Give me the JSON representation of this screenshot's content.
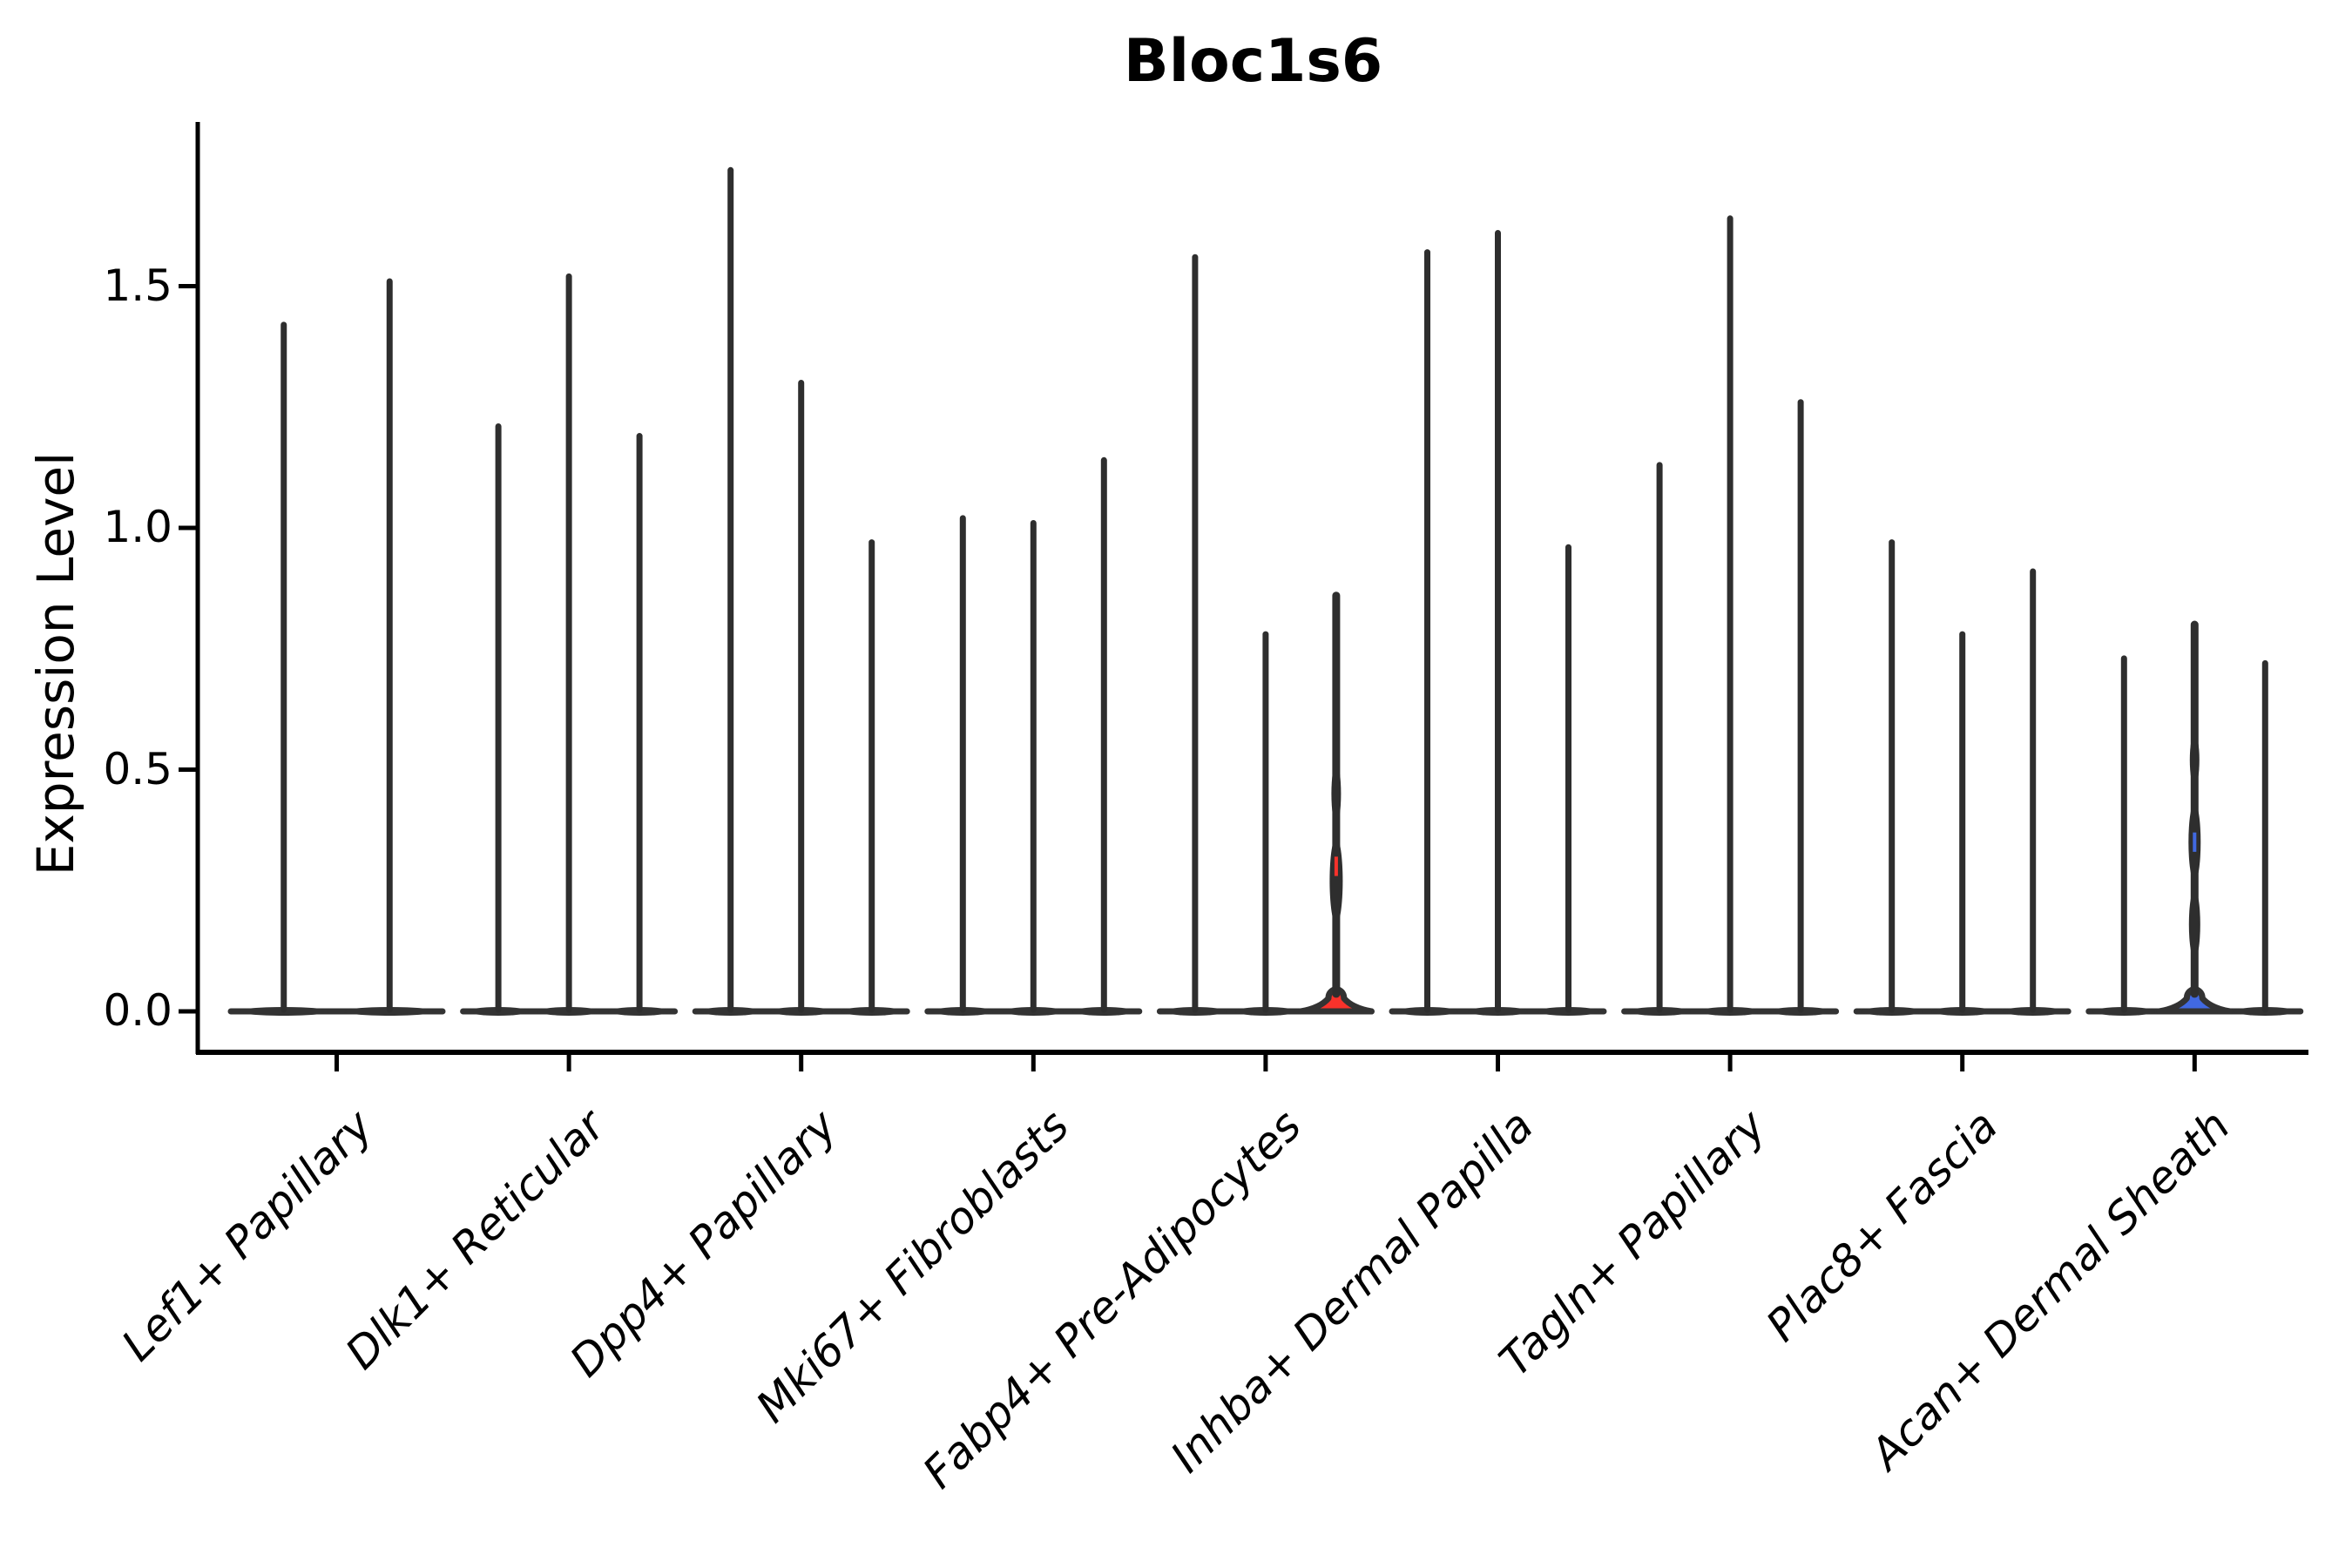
{
  "chart_data": {
    "type": "violin",
    "title": "Bloc1s6",
    "ylabel": "Expression Level",
    "xlabel": "",
    "ylim": [
      0,
      1.84
    ],
    "grid": false,
    "legend": "none",
    "y_ticks": [
      {
        "value": 0.0,
        "label": "0.0"
      },
      {
        "value": 0.5,
        "label": "0.5"
      },
      {
        "value": 1.0,
        "label": "1.0"
      },
      {
        "value": 1.5,
        "label": "1.5"
      }
    ],
    "colors": {
      "violin_line": "#2e2e2e",
      "outline": "#333333",
      "axis": "#000000",
      "background": "#ffffff",
      "highlight_red": "#f9322b",
      "highlight_blue": "#4169e1"
    },
    "groups": [
      {
        "label": "Lef1+ Papillary",
        "violins": [
          {
            "min": 0,
            "max": 1.42
          },
          {
            "min": 0,
            "max": 1.51
          }
        ]
      },
      {
        "label": "Dlk1+ Reticular",
        "violins": [
          {
            "min": 0,
            "max": 1.21
          },
          {
            "min": 0,
            "max": 1.52
          },
          {
            "min": 0,
            "max": 1.19
          }
        ]
      },
      {
        "label": "Dpp4+ Papillary",
        "violins": [
          {
            "min": 0,
            "max": 1.74
          },
          {
            "min": 0,
            "max": 1.3
          },
          {
            "min": 0,
            "max": 0.97
          }
        ]
      },
      {
        "label": "Mki67+ Fibroblasts",
        "violins": [
          {
            "min": 0,
            "max": 1.02
          },
          {
            "min": 0,
            "max": 1.01
          },
          {
            "min": 0,
            "max": 1.14
          }
        ]
      },
      {
        "label": "Fabp4+ Pre-Adipocytes",
        "violins": [
          {
            "min": 0,
            "max": 1.56
          },
          {
            "min": 0,
            "max": 0.78
          },
          {
            "min": 0,
            "max": 0.86,
            "fill": "#f9322b",
            "base_peak": 0.047,
            "body_bulges": [
              {
                "v": 0.27,
                "rx": 7.5,
                "ry": 50
              },
              {
                "v": 0.45,
                "rx": 5.5,
                "ry": 35
              }
            ],
            "fill_peek_range": [
              0.28,
              0.32
            ]
          }
        ]
      },
      {
        "label": "Inhba+ Dermal Papilla",
        "violins": [
          {
            "min": 0,
            "max": 1.57
          },
          {
            "min": 0,
            "max": 1.61
          },
          {
            "min": 0,
            "max": 0.96
          }
        ]
      },
      {
        "label": "Tagln+ Papillary",
        "violins": [
          {
            "min": 0,
            "max": 1.13
          },
          {
            "min": 0,
            "max": 1.64
          },
          {
            "min": 0,
            "max": 1.26
          }
        ]
      },
      {
        "label": "Plac8+ Fascia",
        "violins": [
          {
            "min": 0,
            "max": 0.97
          },
          {
            "min": 0,
            "max": 0.78
          },
          {
            "min": 0,
            "max": 0.91
          }
        ]
      },
      {
        "label": "Acan+ Dermal Sheath",
        "violins": [
          {
            "min": 0,
            "max": 0.73
          },
          {
            "min": 0,
            "max": 0.8,
            "fill": "#4169e1",
            "base_peak": 0.047,
            "body_bulges": [
              {
                "v": 0.18,
                "rx": 6.5,
                "ry": 40
              },
              {
                "v": 0.35,
                "rx": 7.0,
                "ry": 45
              },
              {
                "v": 0.52,
                "rx": 5.5,
                "ry": 30
              }
            ],
            "fill_peek_range": [
              0.33,
              0.37
            ]
          },
          {
            "min": 0,
            "max": 0.72
          }
        ]
      }
    ]
  }
}
